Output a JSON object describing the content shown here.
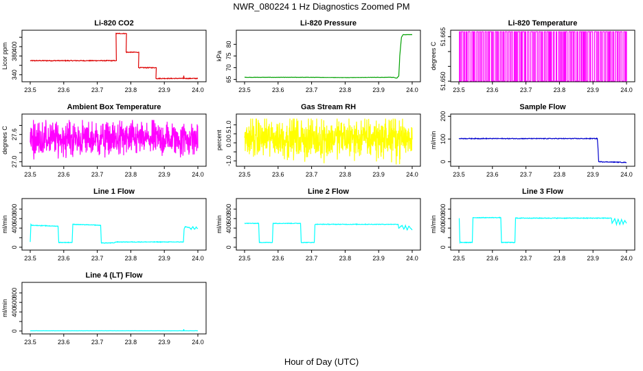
{
  "figure": {
    "title": "NWR_080224  1 Hz Diagnostics Zoomed PM",
    "xlabel": "Hour of Day (UTC)"
  },
  "chart_data": [
    {
      "type": "line",
      "title": "Li-820 CO2",
      "ylabel": "Licor ppm",
      "color": "#dd0000",
      "xlim": [
        23.5,
        24.0
      ],
      "xticks": [
        "23.5",
        "23.6",
        "23.7",
        "23.8",
        "23.9",
        "24.0"
      ],
      "ylim": [
        325,
        435
      ],
      "yticks": [
        340,
        360,
        380,
        400,
        420
      ],
      "ytick_labels": [
        "340",
        "",
        "380",
        "400",
        ""
      ],
      "noise": 0.8,
      "x": [
        23.5,
        23.755,
        23.757,
        23.756,
        23.785,
        23.787,
        23.786,
        23.822,
        23.824,
        23.823,
        23.874,
        23.876,
        23.875,
        23.957,
        23.958,
        23.959,
        23.96,
        23.961,
        24.0
      ],
      "y": [
        370,
        370,
        370,
        428,
        428,
        428,
        388,
        388,
        388,
        355,
        355,
        355,
        332,
        332,
        338,
        332,
        332,
        332,
        332
      ]
    },
    {
      "type": "line",
      "title": "Li-820 Pressure",
      "ylabel": "kPa",
      "color": "#00a000",
      "xlim": [
        23.5,
        24.0
      ],
      "xticks": [
        "23.5",
        "23.6",
        "23.7",
        "23.8",
        "23.9",
        "24.0"
      ],
      "ylim": [
        64,
        86
      ],
      "yticks": [
        65,
        70,
        75,
        80
      ],
      "ytick_labels": [
        "65",
        "70",
        "75",
        "80"
      ],
      "noise": 0.05,
      "x": [
        23.5,
        23.58,
        23.7,
        23.8,
        23.9,
        23.945,
        23.95,
        23.955,
        23.96,
        23.963,
        23.968,
        23.973,
        24.0
      ],
      "y": [
        65.9,
        65.9,
        65.9,
        65.8,
        65.9,
        65.9,
        65.6,
        65.6,
        66.5,
        75.0,
        83.0,
        84.1,
        84.1
      ]
    },
    {
      "type": "line",
      "title": "Li-820 Temperature",
      "ylabel": "degrees C",
      "color": "#ff00ff",
      "xlim": [
        23.5,
        24.0
      ],
      "xticks": [
        "23.5",
        "23.6",
        "23.7",
        "23.8",
        "23.9",
        "24.0"
      ],
      "ylim": [
        51.6498,
        51.6672
      ],
      "yticks": [
        51.65,
        51.655,
        51.66,
        51.665
      ],
      "ytick_labels": [
        "51.650",
        "",
        "",
        "51.665"
      ],
      "note": "digitized toggling between two readings",
      "levels": [
        51.65,
        51.6667
      ],
      "toggle": true
    },
    {
      "type": "line",
      "title": "Ambient Box Temperature",
      "ylabel": "degrees C",
      "color": "#ff00ff",
      "xlim": [
        23.5,
        24.0
      ],
      "xticks": [
        "23.5",
        "23.6",
        "23.7",
        "23.8",
        "23.9",
        "24.0"
      ],
      "ylim": [
        26.9,
        28.05
      ],
      "yticks": [
        27.0,
        27.2,
        27.4,
        27.6,
        27.8
      ],
      "ytick_labels": [
        "27.0",
        "",
        "",
        "27.6",
        ""
      ],
      "noise_band": [
        27.05,
        27.92
      ],
      "center": 27.5
    },
    {
      "type": "line",
      "title": "Gas Stream RH",
      "ylabel": "percent",
      "color": "#ffff00",
      "xlim": [
        23.5,
        24.0
      ],
      "xticks": [
        "23.5",
        "23.6",
        "23.7",
        "23.8",
        "23.9",
        "24.0"
      ],
      "ylim": [
        -1.3,
        1.6
      ],
      "yticks": [
        -1.0,
        -0.5,
        0.0,
        0.5,
        1.0
      ],
      "ytick_labels": [
        "-1.0",
        "",
        "0.0",
        "0.5",
        "1.0"
      ],
      "noise_band": [
        -1.2,
        1.35
      ],
      "center": 0.25
    },
    {
      "type": "line",
      "title": "Sample Flow",
      "ylabel": "ml/min",
      "color": "#0000cc",
      "xlim": [
        23.5,
        24.0
      ],
      "xticks": [
        "23.5",
        "23.6",
        "23.7",
        "23.8",
        "23.9",
        "24.0"
      ],
      "ylim": [
        -20,
        210
      ],
      "yticks": [
        0,
        100,
        200
      ],
      "ytick_labels": [
        "0",
        "100",
        "200"
      ],
      "noise": 1.5,
      "x": [
        23.5,
        23.913,
        23.915,
        23.917,
        24.0
      ],
      "y": [
        102,
        102,
        60,
        0,
        -3
      ]
    },
    {
      "type": "line",
      "title": "Line 1 Flow",
      "ylabel": "ml/min",
      "color": "#00ffff",
      "xlim": [
        23.5,
        24.0
      ],
      "xticks": [
        "23.5",
        "23.6",
        "23.7",
        "23.8",
        "23.9",
        "24.0"
      ],
      "ylim": [
        -60,
        1020
      ],
      "yticks": [
        0,
        200,
        400,
        600,
        800
      ],
      "ytick_labels": [
        "0",
        "",
        "400",
        "600",
        "800"
      ],
      "noise": 6,
      "x": [
        23.5,
        23.502,
        23.504,
        23.583,
        23.585,
        23.625,
        23.627,
        23.71,
        23.712,
        23.75,
        23.755,
        23.957,
        23.959,
        23.962,
        23.975,
        23.98,
        23.985,
        23.99,
        23.995,
        24.0
      ],
      "y": [
        110,
        480,
        460,
        440,
        100,
        100,
        480,
        460,
        90,
        90,
        110,
        110,
        380,
        430,
        410,
        380,
        430,
        370,
        420,
        390
      ]
    },
    {
      "type": "line",
      "title": "Line 2 Flow",
      "ylabel": "ml/min",
      "color": "#00ffff",
      "xlim": [
        23.5,
        24.0
      ],
      "xticks": [
        "23.5",
        "23.6",
        "23.7",
        "23.8",
        "23.9",
        "24.0"
      ],
      "ylim": [
        -60,
        1020
      ],
      "yticks": [
        0,
        200,
        400,
        600,
        800
      ],
      "ytick_labels": [
        "0",
        "",
        "400",
        "600",
        "800"
      ],
      "noise": 6,
      "x": [
        23.5,
        23.542,
        23.544,
        23.583,
        23.585,
        23.667,
        23.669,
        23.708,
        23.71,
        23.958,
        23.96,
        23.97,
        23.975,
        23.98,
        23.985,
        23.99,
        24.0
      ],
      "y": [
        500,
        500,
        100,
        100,
        500,
        500,
        100,
        100,
        480,
        480,
        400,
        460,
        380,
        450,
        360,
        440,
        360
      ]
    },
    {
      "type": "line",
      "title": "Line 3 Flow",
      "ylabel": "ml/min",
      "color": "#00ffff",
      "xlim": [
        23.5,
        24.0
      ],
      "xticks": [
        "23.5",
        "23.6",
        "23.7",
        "23.8",
        "23.9",
        "24.0"
      ],
      "ylim": [
        -60,
        1020
      ],
      "yticks": [
        0,
        200,
        400,
        600,
        800
      ],
      "ytick_labels": [
        "0",
        "",
        "400",
        "600",
        "800"
      ],
      "noise": 7,
      "x": [
        23.5,
        23.501,
        23.503,
        23.54,
        23.542,
        23.625,
        23.627,
        23.667,
        23.669,
        23.955,
        23.957,
        23.965,
        23.97,
        23.975,
        23.98,
        23.985,
        23.99,
        23.995,
        24.0
      ],
      "y": [
        600,
        600,
        100,
        100,
        620,
        620,
        100,
        100,
        610,
        610,
        500,
        600,
        480,
        590,
        470,
        580,
        490,
        560,
        500
      ]
    },
    {
      "type": "line",
      "title": "Line 4 (LT) Flow",
      "ylabel": "ml/min",
      "color": "#00ffff",
      "xlim": [
        23.5,
        24.0
      ],
      "xticks": [
        "23.5",
        "23.6",
        "23.7",
        "23.8",
        "23.9",
        "24.0"
      ],
      "ylim": [
        -60,
        1020
      ],
      "yticks": [
        0,
        200,
        400,
        600,
        800
      ],
      "ytick_labels": [
        "0",
        "",
        "400",
        "600",
        "800"
      ],
      "noise": 1,
      "x": [
        23.5,
        23.957,
        23.958,
        23.959,
        23.96,
        24.0
      ],
      "y": [
        5,
        5,
        40,
        5,
        5,
        5
      ]
    }
  ]
}
